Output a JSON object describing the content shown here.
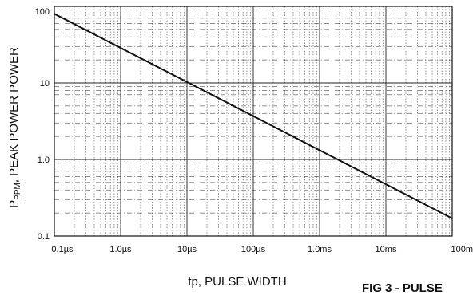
{
  "chart_data": {
    "type": "line",
    "x_scale": "log",
    "y_scale": "log",
    "xlim_seconds": [
      1e-07,
      0.1
    ],
    "ylim": [
      0.1,
      100
    ],
    "grid": true,
    "x_tick_labels": [
      "0.1µs",
      "1.0µs",
      "10µs",
      "100µs",
      "1.0ms",
      "10ms",
      "100m"
    ],
    "y_tick_labels": [
      "100",
      "10",
      "1.0",
      "0.1"
    ],
    "xlabel": "tp, PULSE WIDTH",
    "ylabel_main": "P",
    "ylabel_sub": "PPM",
    "ylabel_rest": ", PEAK POWER POWER",
    "figure_caption": "FIG 3 - PULSE",
    "series": [
      {
        "x_seconds": [
          1e-07,
          0.1
        ],
        "y": [
          80,
          0.17
        ]
      }
    ],
    "colors": {
      "line": "#111111",
      "grid": "#222222",
      "background": "#ffffff"
    }
  }
}
